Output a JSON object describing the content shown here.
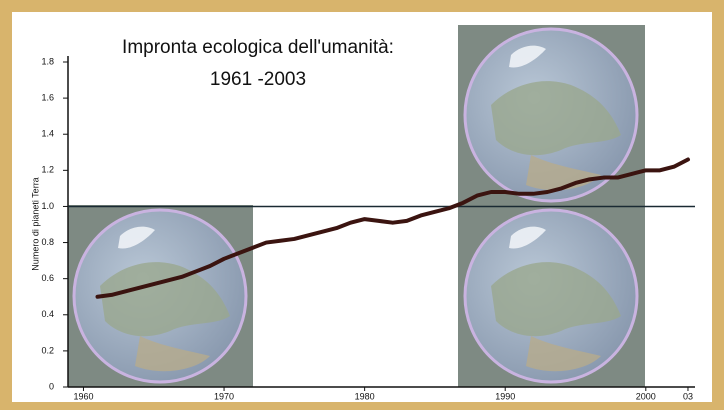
{
  "chart_data": {
    "type": "line",
    "title": "Impronta ecologica dell'umanità:",
    "subtitle": "1961 -2003",
    "y_label": "Numero di pianeti Terra",
    "x": [
      1961,
      1962,
      1963,
      1964,
      1965,
      1966,
      1967,
      1968,
      1969,
      1970,
      1971,
      1972,
      1973,
      1974,
      1975,
      1976,
      1977,
      1978,
      1979,
      1980,
      1981,
      1982,
      1983,
      1984,
      1985,
      1986,
      1987,
      1988,
      1989,
      1990,
      1991,
      1992,
      1993,
      1994,
      1995,
      1996,
      1997,
      1998,
      1999,
      2000,
      2001,
      2002,
      2003
    ],
    "series": [
      {
        "color": "#3b1410",
        "values": [
          0.5,
          0.51,
          0.53,
          0.55,
          0.57,
          0.59,
          0.61,
          0.64,
          0.67,
          0.71,
          0.74,
          0.77,
          0.8,
          0.81,
          0.82,
          0.84,
          0.86,
          0.88,
          0.91,
          0.93,
          0.92,
          0.91,
          0.92,
          0.95,
          0.97,
          0.99,
          1.02,
          1.06,
          1.08,
          1.08,
          1.07,
          1.07,
          1.08,
          1.1,
          1.13,
          1.15,
          1.16,
          1.16,
          1.18,
          1.2,
          1.2,
          1.22,
          1.26
        ]
      }
    ],
    "reference_line": 1,
    "xlim": [
      1958.9,
      2003.5
    ],
    "ylim": [
      0,
      1.8
    ],
    "xticks": [
      1960,
      1970,
      1980,
      1990,
      2000,
      {
        "value": 2003,
        "label": "03"
      }
    ],
    "yticks": [
      0,
      0.2,
      0.4,
      0.6,
      0.8,
      {
        "value": 1,
        "label": "1.0"
      },
      1.2,
      1.4,
      1.6,
      1.8
    ]
  }
}
